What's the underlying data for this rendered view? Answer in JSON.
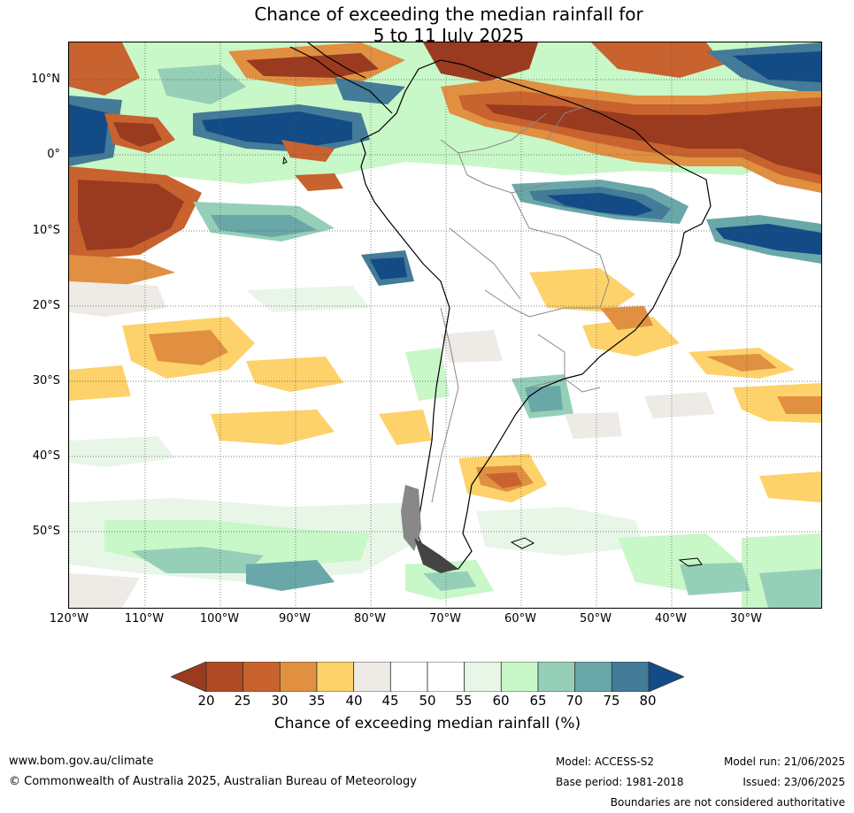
{
  "title": {
    "line1": "Chance of exceeding the median rainfall for",
    "line2": "5 to 11 July 2025"
  },
  "axes": {
    "lat_labels": [
      "10°N",
      "0°",
      "10°S",
      "20°S",
      "30°S",
      "40°S",
      "50°S"
    ],
    "lon_labels": [
      "120°W",
      "110°W",
      "100°W",
      "90°W",
      "80°W",
      "70°W",
      "60°W",
      "50°W",
      "40°W",
      "30°W"
    ]
  },
  "colorbar": {
    "ticks": [
      "20",
      "25",
      "30",
      "35",
      "40",
      "45",
      "50",
      "55",
      "60",
      "65",
      "70",
      "75",
      "80"
    ],
    "colors": [
      "#9a3b20",
      "#b04a24",
      "#c8622e",
      "#e09040",
      "#fdd26a",
      "#eeeae6",
      "#ffffff",
      "#ffffff",
      "#e8f6e8",
      "#c8f7c8",
      "#96cfb8",
      "#6aa7a8",
      "#437b98",
      "#134b86"
    ],
    "label": "Chance of exceeding median rainfall (%)"
  },
  "footer": {
    "url": "www.bom.gov.au/climate",
    "copyright": "© Commonwealth of Australia 2025, Australian Bureau of Meteorology",
    "model": "Model: ACCESS-S2",
    "base_period": "Base period: 1981-2018",
    "model_run": "Model run: 21/06/2025",
    "issued": "Issued: 23/06/2025",
    "boundaries_note": "Boundaries are not considered authoritative"
  }
}
